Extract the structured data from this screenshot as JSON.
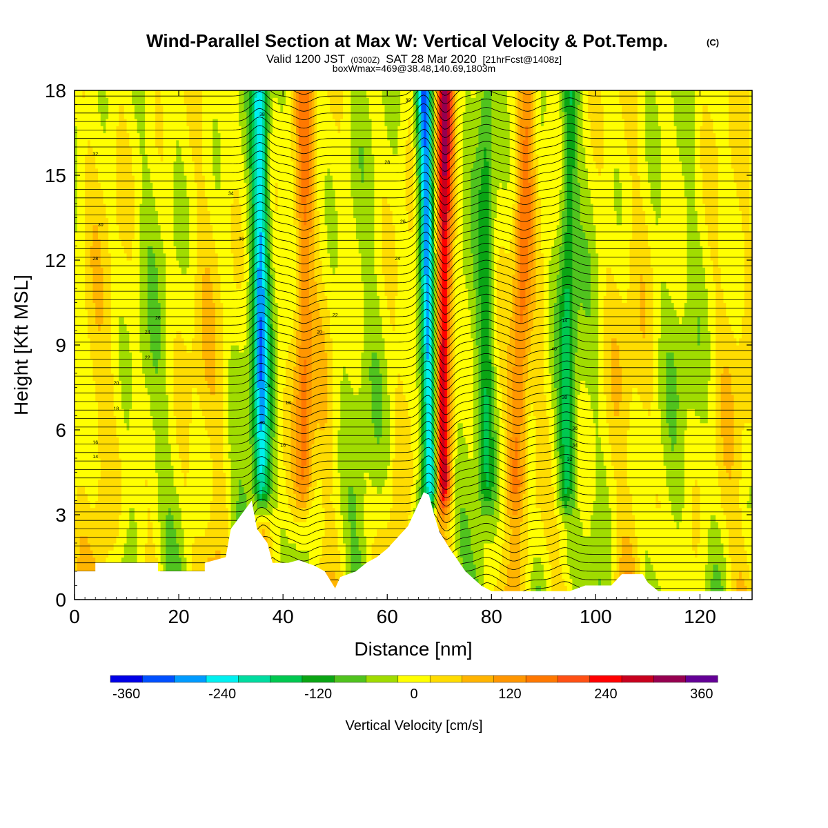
{
  "chart_data": {
    "type": "heatmap",
    "title": "Wind-Parallel Section at Max W: Vertical Velocity & Pot.Temp.",
    "title_mark": "(C)",
    "subtitle_main": "Valid 1200 JST",
    "subtitle_utc": "(0300Z)",
    "subtitle_date": "SAT 28 Mar 2020",
    "subtitle_fcst": "[21hrFcst@1408z]",
    "subtitle_box": "boxWmax=469@38.48,140.69,1803m",
    "xlabel": "Distance [nm]",
    "ylabel": "Height [Kft MSL]",
    "xlim": [
      0,
      130
    ],
    "ylim": [
      0,
      18
    ],
    "x_ticks": [
      0,
      20,
      40,
      60,
      80,
      100,
      120
    ],
    "y_ticks": [
      0,
      3,
      6,
      9,
      12,
      15,
      18
    ],
    "colorbar": {
      "label": "Vertical Velocity [cm/s]",
      "min": -380,
      "max": 380,
      "ticks": [
        -360,
        -240,
        -120,
        0,
        120,
        240,
        360
      ],
      "colors": [
        "#0000e6",
        "#0050ff",
        "#009bff",
        "#00f0f0",
        "#00dca0",
        "#00c850",
        "#0aa514",
        "#50c31e",
        "#a0dc00",
        "#ffff00",
        "#ffdc00",
        "#ffb400",
        "#ff9600",
        "#ff7800",
        "#ff5014",
        "#ff0000",
        "#c8001e",
        "#960050",
        "#640096"
      ]
    },
    "terrain_kft": [
      [
        0,
        1.0
      ],
      [
        4,
        1.0
      ],
      [
        4,
        1.3
      ],
      [
        16,
        1.3
      ],
      [
        16,
        1.0
      ],
      [
        25,
        1.0
      ],
      [
        25,
        1.3
      ],
      [
        29,
        1.5
      ],
      [
        30,
        2.5
      ],
      [
        32,
        3.0
      ],
      [
        34,
        3.5
      ],
      [
        35,
        2.5
      ],
      [
        37,
        2.0
      ],
      [
        38,
        1.3
      ],
      [
        40,
        1.3
      ],
      [
        41,
        1.3
      ],
      [
        43,
        1.4
      ],
      [
        46,
        1.2
      ],
      [
        48,
        1.0
      ],
      [
        50,
        0.4
      ],
      [
        51,
        0.8
      ],
      [
        54,
        1.0
      ],
      [
        56,
        1.3
      ],
      [
        58,
        1.5
      ],
      [
        60,
        1.8
      ],
      [
        62,
        2.2
      ],
      [
        64,
        2.6
      ],
      [
        66,
        3.4
      ],
      [
        67,
        3.8
      ],
      [
        68,
        3.7
      ],
      [
        69,
        3.0
      ],
      [
        70,
        2.4
      ],
      [
        72,
        1.8
      ],
      [
        75,
        1.0
      ],
      [
        78,
        0.5
      ],
      [
        80,
        0.3
      ],
      [
        95,
        0.3
      ],
      [
        98,
        0.5
      ],
      [
        103,
        0.5
      ],
      [
        105,
        0.9
      ],
      [
        109,
        0.9
      ],
      [
        110,
        0.6
      ],
      [
        112,
        0.3
      ],
      [
        130,
        0.3
      ]
    ],
    "updraft_bands": [
      {
        "x0": 36.0,
        "x1": 35.5,
        "w": -230
      },
      {
        "x0": 69.0,
        "x1": 67.0,
        "w": -330
      },
      {
        "x0": 70.5,
        "x1": 71.0,
        "w": 300
      },
      {
        "x0": 44.0,
        "x1": 44.0,
        "w": 120
      },
      {
        "x0": 84.0,
        "x1": 87.0,
        "w": 120
      },
      {
        "x0": 94.0,
        "x1": 95.0,
        "w": -120
      },
      {
        "x0": 79.0,
        "x1": 79.0,
        "w": -100
      }
    ],
    "isentrope_labels": [
      "14",
      "16",
      "18",
      "20",
      "22",
      "24",
      "26",
      "28",
      "30",
      "32",
      "34",
      "36",
      "38",
      "40"
    ]
  }
}
